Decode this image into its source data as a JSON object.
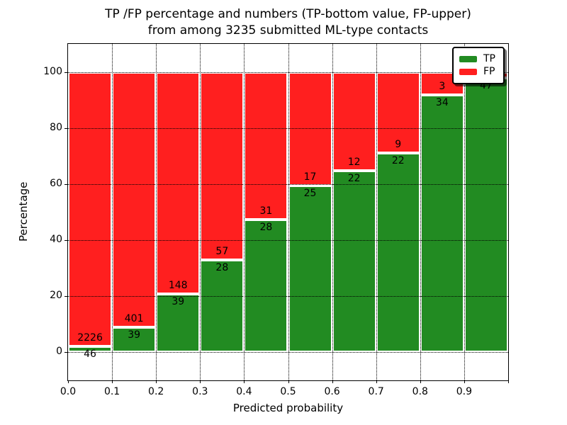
{
  "chart_data": {
    "type": "bar",
    "stacked": true,
    "title": "TP /FP percentage and numbers (TP-bottom value, FP-upper) from among 3235 submitted ML-type contacts",
    "title_line1": "TP /FP percentage and numbers (TP-bottom value, FP-upper)",
    "title_line2": "from among 3235 submitted ML-type contacts",
    "xlabel": "Predicted probability",
    "ylabel": "Percentage",
    "total_submitted_contacts": 3235,
    "xlim": [
      0.0,
      1.0
    ],
    "ylim": [
      -10,
      110
    ],
    "x_tick_labels": [
      "0.0",
      "0.1",
      "0.2",
      "0.3",
      "0.4",
      "0.5",
      "0.6",
      "0.7",
      "0.8",
      "0.9"
    ],
    "y_tick_values": [
      0,
      20,
      40,
      60,
      80,
      100
    ],
    "y_tick_labels": [
      "0",
      "20",
      "40",
      "60",
      "80",
      "100"
    ],
    "grid": "dotted",
    "colors": {
      "tp": "#228b22",
      "fp": "#ff1f1f",
      "bar_edge": "#ffffff"
    },
    "legend": {
      "position": "upper right",
      "entries": [
        {
          "label": "TP",
          "color": "#228b22"
        },
        {
          "label": "FP",
          "color": "#ff1f1f"
        }
      ]
    },
    "bins": [
      {
        "x_range": [
          0.0,
          0.1
        ],
        "tp_count": "46",
        "fp_count": "2226",
        "tp_pct": 2.02
      },
      {
        "x_range": [
          0.1,
          0.2
        ],
        "tp_count": "39",
        "fp_count": "401",
        "tp_pct": 8.86
      },
      {
        "x_range": [
          0.2,
          0.3
        ],
        "tp_count": "39",
        "fp_count": "148",
        "tp_pct": 20.86
      },
      {
        "x_range": [
          0.3,
          0.4
        ],
        "tp_count": "28",
        "fp_count": "57",
        "tp_pct": 32.94
      },
      {
        "x_range": [
          0.4,
          0.5
        ],
        "tp_count": "28",
        "fp_count": "31",
        "tp_pct": 47.46
      },
      {
        "x_range": [
          0.5,
          0.6
        ],
        "tp_count": "25",
        "fp_count": "17",
        "tp_pct": 59.52
      },
      {
        "x_range": [
          0.6,
          0.7
        ],
        "tp_count": "22",
        "fp_count": "12",
        "tp_pct": 64.71
      },
      {
        "x_range": [
          0.7,
          0.8
        ],
        "tp_count": "22",
        "fp_count": "9",
        "tp_pct": 70.97
      },
      {
        "x_range": [
          0.8,
          0.9
        ],
        "tp_count": "34",
        "fp_count": "3",
        "tp_pct": 91.89
      },
      {
        "x_range": [
          0.9,
          1.0
        ],
        "tp_count": "47",
        "fp_count": "",
        "tp_pct": 97.92
      }
    ]
  }
}
